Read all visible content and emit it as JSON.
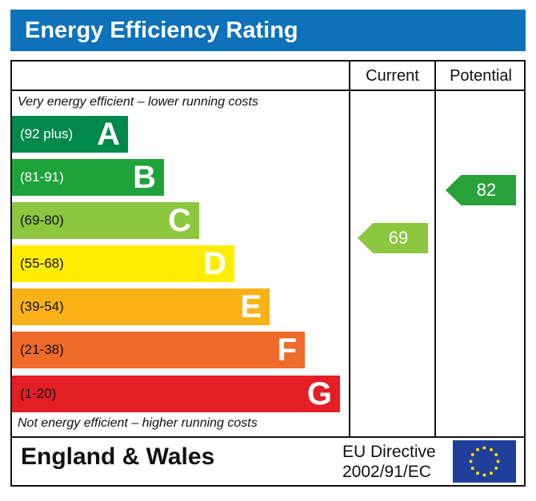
{
  "title": "Energy Efficiency Rating",
  "chart_data": {
    "type": "bar",
    "title": "Energy Efficiency Rating",
    "columns": [
      "Current",
      "Potential"
    ],
    "top_note": "Very energy efficient – lower running costs",
    "bottom_note": "Not energy efficient – higher running costs",
    "bands": [
      {
        "letter": "A",
        "range": "(92 plus)",
        "color": "#00894a"
      },
      {
        "letter": "B",
        "range": "(81-91)",
        "color": "#1ea23a"
      },
      {
        "letter": "C",
        "range": "(69-80)",
        "color": "#8dc63f"
      },
      {
        "letter": "D",
        "range": "(55-68)",
        "color": "#ffed00"
      },
      {
        "letter": "E",
        "range": "(39-54)",
        "color": "#fbb216"
      },
      {
        "letter": "F",
        "range": "(21-38)",
        "color": "#ee6b2a"
      },
      {
        "letter": "G",
        "range": "(1-20)",
        "color": "#e31e24"
      }
    ],
    "current": {
      "value": "69",
      "band": "C",
      "color": "#8dc63f"
    },
    "potential": {
      "value": "82",
      "band": "B",
      "color": "#2aa23a"
    }
  },
  "footer": {
    "region": "England & Wales",
    "directive_line1": "EU Directive",
    "directive_line2": "2002/91/EC",
    "flag": "eu-flag-icon"
  }
}
